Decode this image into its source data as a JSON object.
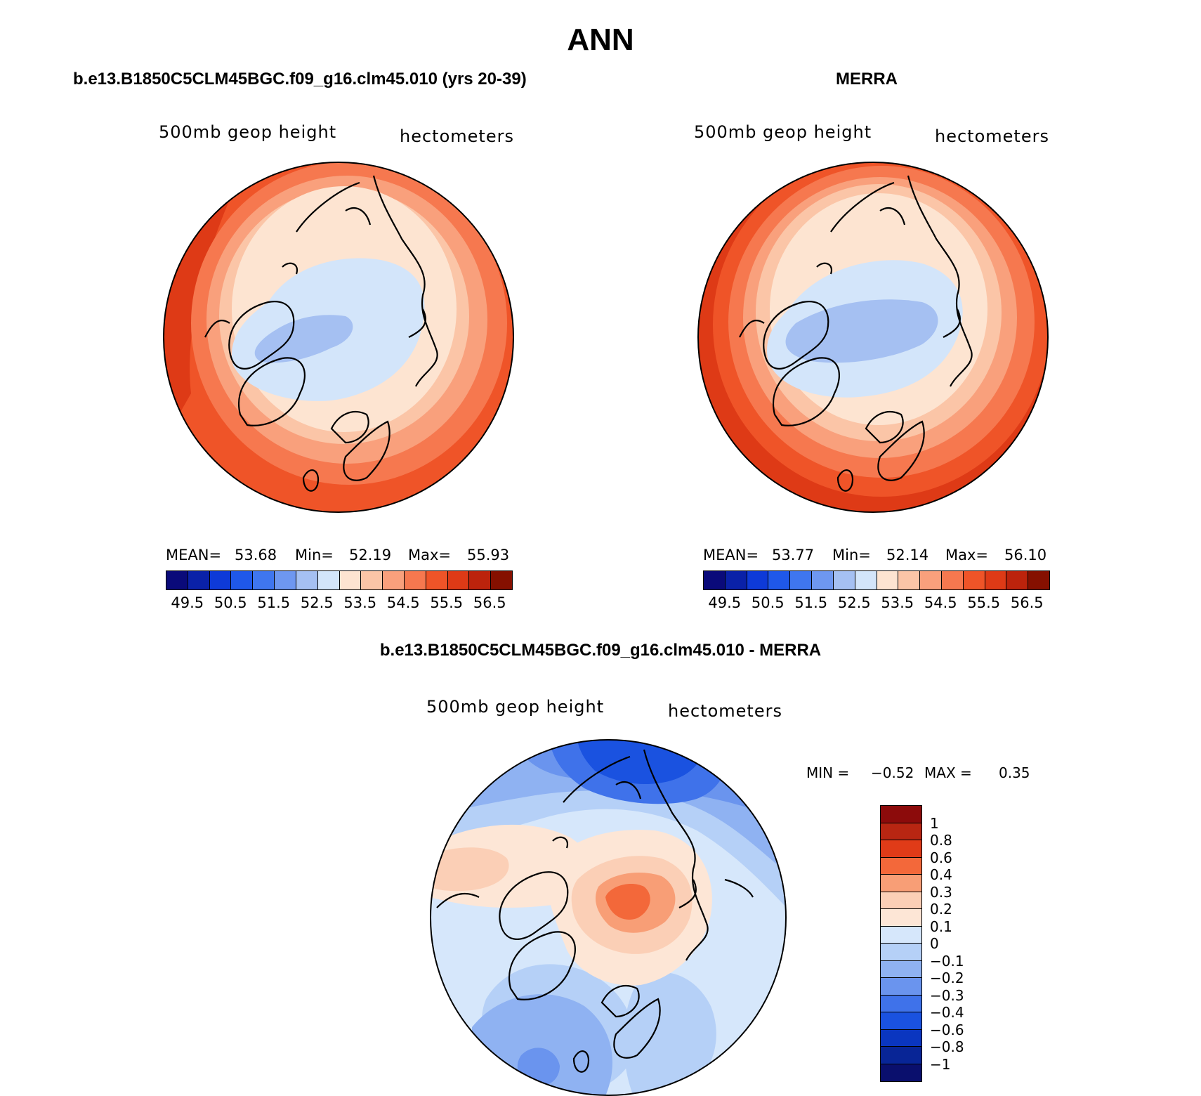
{
  "figure": {
    "title": "ANN",
    "diff_title": "b.e13.B1850C5CLM45BGC.f09_g16.clm45.010 - MERRA"
  },
  "panels": [
    {
      "heading": "b.e13.B1850C5CLM45BGC.f09_g16.clm45.010 (yrs 20-39)",
      "variable": "500mb geop height",
      "units": "hectometers",
      "mean_label": "MEAN=",
      "mean_value": "53.68",
      "min_label": "Min=",
      "min_value": "52.19",
      "max_label": "Max=",
      "max_value": "55.93"
    },
    {
      "heading": "MERRA",
      "variable": "500mb geop height",
      "units": "hectometers",
      "mean_label": "MEAN=",
      "mean_value": "53.77",
      "min_label": "Min=",
      "min_value": "52.14",
      "max_label": "Max=",
      "max_value": "56.10"
    }
  ],
  "diff_panel": {
    "variable": "500mb geop height",
    "units": "hectometers",
    "min_label": "MIN =",
    "min_value": "−0.52",
    "max_label": "MAX =",
    "max_value": "0.35"
  },
  "abs_colorbar": {
    "colors": [
      "#0a0a7a",
      "#0a21a8",
      "#0e3ad8",
      "#1f58ea",
      "#3f76ef",
      "#6e97f0",
      "#a5c0f2",
      "#d3e5fa",
      "#fde4d1",
      "#fbc5a7",
      "#f9a07c",
      "#f6784f",
      "#ef5428",
      "#de3a16",
      "#bc230c",
      "#851000"
    ],
    "ticks": [
      "49.5",
      "50.5",
      "51.5",
      "52.5",
      "53.5",
      "54.5",
      "55.5",
      "56.5"
    ]
  },
  "diff_colorbar": {
    "colors": [
      "#8c0b0b",
      "#b82612",
      "#e03b18",
      "#f3683a",
      "#f89e76",
      "#fbcfb6",
      "#fde6d6",
      "#d6e7fb",
      "#b5d0f7",
      "#8fb2f2",
      "#6a94ee",
      "#3f72ea",
      "#1a52e0",
      "#0a36c0",
      "#082596",
      "#0a0f6d"
    ],
    "ticks": [
      "1",
      "0.8",
      "0.6",
      "0.4",
      "0.3",
      "0.2",
      "0.1",
      "0",
      "−0.1",
      "−0.2",
      "−0.3",
      "−0.4",
      "−0.6",
      "−0.8",
      "−1"
    ]
  }
}
